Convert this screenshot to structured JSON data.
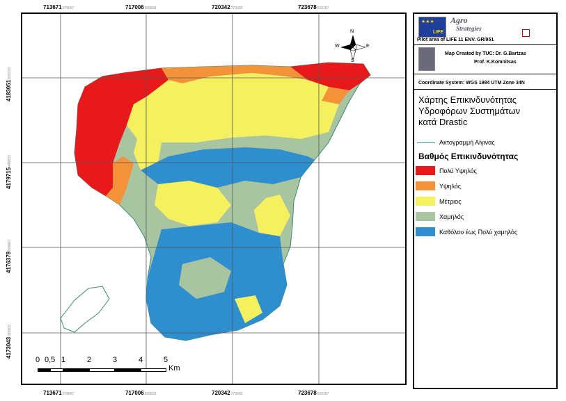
{
  "map": {
    "x_ticks": [
      {
        "main": "713671",
        "sub": "079667"
      },
      {
        "main": "717006",
        "sub": "605833"
      },
      {
        "main": "720342",
        "sub": "773000"
      },
      {
        "main": "723678",
        "sub": "616167"
      }
    ],
    "y_ticks": [
      {
        "main": "4183051",
        "sub": "600333"
      },
      {
        "main": "4179715",
        "sub": "448833"
      },
      {
        "main": "4176379",
        "sub": "500667"
      },
      {
        "main": "4173043",
        "sub": "585500"
      }
    ],
    "scale_bar": {
      "labels": [
        "0",
        "0,5",
        "1",
        "2",
        "3",
        "4",
        "5"
      ],
      "unit": "Km"
    },
    "north_arrow": {
      "n": "N",
      "s": "S",
      "e": "E",
      "w": "W"
    }
  },
  "legend": {
    "logo_eu_text": "LIFE",
    "logo_agro_line1": "Agro",
    "logo_agro_line2": "Strategies",
    "pilot_area": "Pilot area of LIFE 11 ENV. GR/951",
    "credit_line1": "Map Created by TUC: Dr. G.Bartzas",
    "credit_line2": "Prof. K.Komnitsas",
    "coordinate_system": "Coordinate System: WGS 1984 UTM Zone 34N",
    "title_line1": "Χάρτης Επικινδυνότητας",
    "title_line2": "Υδροφόρων Συστημάτων",
    "title_line3": "κατά Drastic",
    "coastline_label": "Ακτογραμμή Αίγινας",
    "class_heading": "Βαθμός Επικινδυνότητας",
    "classes": [
      {
        "label": "Πολύ Υψηλός",
        "color": "#e8191a"
      },
      {
        "label": "Υψηλός",
        "color": "#f4923a"
      },
      {
        "label": "Μέτριος",
        "color": "#f5f060"
      },
      {
        "label": "Χαμηλός",
        "color": "#a8c4a0"
      },
      {
        "label": "Καθόλου έως Πολύ χαμηλός",
        "color": "#2f8fce"
      }
    ]
  }
}
